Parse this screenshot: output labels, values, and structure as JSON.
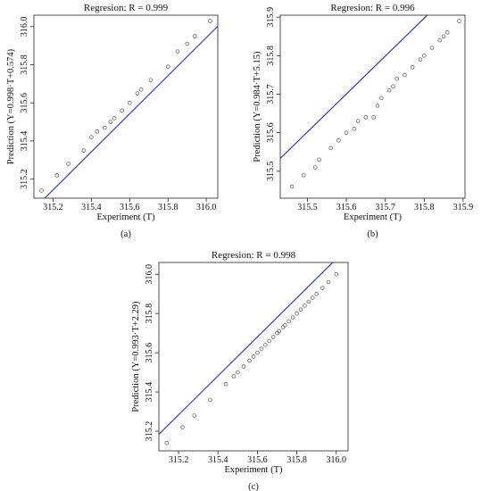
{
  "chart_data": [
    {
      "type": "scatter",
      "panel_label": "(a)",
      "title": "Regresion: R = 0.999",
      "xlabel": "Experiment (T)",
      "ylabel": "Prediction (Y=0.998·T+0.574)",
      "xlim": [
        315.1,
        316.06
      ],
      "ylim": [
        315.1,
        316.06
      ],
      "xticks": [
        "315.2",
        "315.4",
        "315.6",
        "315.8",
        "316.0"
      ],
      "yticks": [
        "315.2",
        "315.4",
        "315.6",
        "315.8",
        "316.0"
      ],
      "grid": false,
      "fit_line": {
        "slope": 0.998,
        "intercept": 0.574,
        "color": "#1f2fb0"
      },
      "marker_color": "#555555",
      "points": [
        [
          315.14,
          315.14
        ],
        [
          315.22,
          315.22
        ],
        [
          315.28,
          315.28
        ],
        [
          315.36,
          315.35
        ],
        [
          315.4,
          315.42
        ],
        [
          315.43,
          315.45
        ],
        [
          315.47,
          315.47
        ],
        [
          315.5,
          315.5
        ],
        [
          315.52,
          315.52
        ],
        [
          315.56,
          315.56
        ],
        [
          315.6,
          315.6
        ],
        [
          315.64,
          315.65
        ],
        [
          315.66,
          315.67
        ],
        [
          315.71,
          315.72
        ],
        [
          315.8,
          315.79
        ],
        [
          315.85,
          315.87
        ],
        [
          315.9,
          315.91
        ],
        [
          315.94,
          315.95
        ],
        [
          316.02,
          316.03
        ]
      ]
    },
    {
      "type": "scatter",
      "panel_label": "(b)",
      "title": "Regresion: R = 0.996",
      "xlabel": "Experiment (T)",
      "ylabel": "Prediction (Y=0.984·T+5.15)",
      "xlim": [
        315.43,
        315.905
      ],
      "ylim": [
        315.43,
        315.905
      ],
      "xticks": [
        "315.5",
        "315.6",
        "315.7",
        "315.8",
        "315.9"
      ],
      "yticks": [
        "315.5",
        "315.6",
        "315.7",
        "315.8",
        "315.9"
      ],
      "grid": false,
      "fit_line": {
        "slope": 0.984,
        "intercept": 5.15,
        "color": "#1f2fb0"
      },
      "marker_color": "#555555",
      "points": [
        [
          315.46,
          315.46
        ],
        [
          315.49,
          315.49
        ],
        [
          315.52,
          315.51
        ],
        [
          315.53,
          315.53
        ],
        [
          315.56,
          315.56
        ],
        [
          315.58,
          315.58
        ],
        [
          315.6,
          315.6
        ],
        [
          315.62,
          315.61
        ],
        [
          315.63,
          315.63
        ],
        [
          315.65,
          315.64
        ],
        [
          315.67,
          315.64
        ],
        [
          315.68,
          315.67
        ],
        [
          315.69,
          315.69
        ],
        [
          315.71,
          315.71
        ],
        [
          315.72,
          315.72
        ],
        [
          315.73,
          315.74
        ],
        [
          315.75,
          315.75
        ],
        [
          315.77,
          315.77
        ],
        [
          315.79,
          315.79
        ],
        [
          315.8,
          315.8
        ],
        [
          315.82,
          315.82
        ],
        [
          315.84,
          315.84
        ],
        [
          315.85,
          315.85
        ],
        [
          315.86,
          315.86
        ],
        [
          315.89,
          315.89
        ]
      ]
    },
    {
      "type": "scatter",
      "panel_label": "(c)",
      "title": "Regresion: R = 0.998",
      "xlabel": "Experiment (T)",
      "ylabel": "Prediction (Y=0.993·T+2.29)",
      "xlim": [
        315.1,
        316.06
      ],
      "ylim": [
        315.1,
        316.06
      ],
      "xticks": [
        "315.2",
        "315.4",
        "315.6",
        "315.8",
        "316.0"
      ],
      "yticks": [
        "315.2",
        "315.4",
        "315.6",
        "315.8",
        "316.0"
      ],
      "grid": false,
      "fit_line": {
        "slope": 0.993,
        "intercept": 2.29,
        "color": "#1f2fb0"
      },
      "marker_color": "#555555",
      "points": [
        [
          315.14,
          315.14
        ],
        [
          315.22,
          315.22
        ],
        [
          315.28,
          315.28
        ],
        [
          315.36,
          315.36
        ],
        [
          315.44,
          315.44
        ],
        [
          315.48,
          315.48
        ],
        [
          315.5,
          315.5
        ],
        [
          315.53,
          315.53
        ],
        [
          315.56,
          315.56
        ],
        [
          315.58,
          315.58
        ],
        [
          315.6,
          315.6
        ],
        [
          315.62,
          315.62
        ],
        [
          315.64,
          315.64
        ],
        [
          315.66,
          315.66
        ],
        [
          315.68,
          315.68
        ],
        [
          315.7,
          315.7
        ],
        [
          315.71,
          315.71
        ],
        [
          315.73,
          315.73
        ],
        [
          315.74,
          315.74
        ],
        [
          315.76,
          315.76
        ],
        [
          315.78,
          315.78
        ],
        [
          315.8,
          315.8
        ],
        [
          315.82,
          315.82
        ],
        [
          315.84,
          315.84
        ],
        [
          315.86,
          315.86
        ],
        [
          315.88,
          315.88
        ],
        [
          315.9,
          315.9
        ],
        [
          315.93,
          315.93
        ],
        [
          315.96,
          315.96
        ],
        [
          316.0,
          316.0
        ]
      ]
    }
  ]
}
